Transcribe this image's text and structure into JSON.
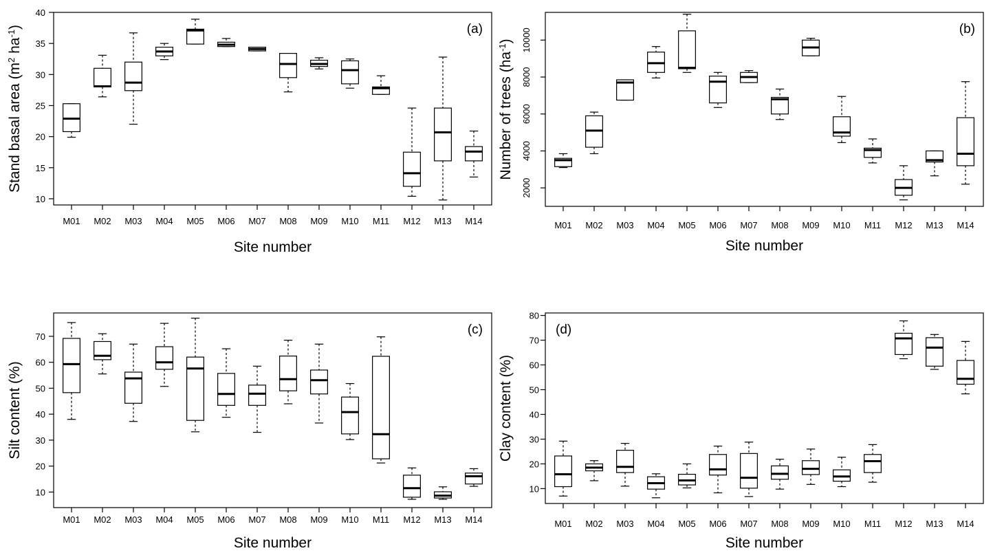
{
  "chart_data": [
    {
      "type": "box",
      "panel_label": "(a)",
      "xlabel": "Site number",
      "ylabel_parts": [
        "Stand basal area (m",
        "2",
        " ha",
        "-1",
        ")"
      ],
      "ylim": [
        9,
        40
      ],
      "yticks": [
        10,
        15,
        20,
        25,
        30,
        35,
        40
      ],
      "categories": [
        "M01",
        "M02",
        "M03",
        "M04",
        "M05",
        "M06",
        "M07",
        "M08",
        "M09",
        "M10",
        "M11",
        "M12",
        "M13",
        "M14"
      ],
      "boxes": [
        {
          "min": 19.9,
          "q1": 20.8,
          "median": 22.9,
          "q3": 25.3,
          "max": 25.3
        },
        {
          "min": 26.4,
          "q1": 28.0,
          "median": 28.1,
          "q3": 31.0,
          "max": 33.1
        },
        {
          "min": 22.0,
          "q1": 27.4,
          "median": 28.7,
          "q3": 32.0,
          "max": 36.7
        },
        {
          "min": 32.4,
          "q1": 33.0,
          "median": 33.7,
          "q3": 34.4,
          "max": 35.0
        },
        {
          "min": 34.9,
          "q1": 34.9,
          "median": 37.1,
          "q3": 37.3,
          "max": 38.9
        },
        {
          "min": 34.5,
          "q1": 34.5,
          "median": 34.8,
          "q3": 35.2,
          "max": 35.8
        },
        {
          "min": 33.8,
          "q1": 33.8,
          "median": 34.1,
          "q3": 34.4,
          "max": 34.4
        },
        {
          "min": 27.2,
          "q1": 29.5,
          "median": 31.7,
          "q3": 33.4,
          "max": 33.4
        },
        {
          "min": 30.9,
          "q1": 31.3,
          "median": 31.7,
          "q3": 32.3,
          "max": 32.7
        },
        {
          "min": 27.8,
          "q1": 28.5,
          "median": 30.7,
          "q3": 32.2,
          "max": 32.5
        },
        {
          "min": 26.8,
          "q1": 26.8,
          "median": 27.8,
          "q3": 28.0,
          "max": 29.8
        },
        {
          "min": 10.4,
          "q1": 12.0,
          "median": 14.1,
          "q3": 17.5,
          "max": 24.6
        },
        {
          "min": 9.8,
          "q1": 16.1,
          "median": 20.7,
          "q3": 24.6,
          "max": 32.8
        },
        {
          "min": 13.5,
          "q1": 16.1,
          "median": 17.6,
          "q3": 18.4,
          "max": 20.9
        }
      ]
    },
    {
      "type": "box",
      "panel_label": "(b)",
      "xlabel": "Site number",
      "ylabel_parts": [
        "Number of trees (ha",
        "-1",
        ")"
      ],
      "ylim": [
        1000,
        11500
      ],
      "yticks": [
        2000,
        4000,
        6000,
        8000,
        10000
      ],
      "categories": [
        "M01",
        "M02",
        "M03",
        "M04",
        "M05",
        "M06",
        "M07",
        "M08",
        "M09",
        "M10",
        "M11",
        "M12",
        "M13",
        "M14"
      ],
      "boxes": [
        {
          "min": 3100,
          "q1": 3150,
          "median": 3500,
          "q3": 3600,
          "max": 3850
        },
        {
          "min": 3850,
          "q1": 4200,
          "median": 5100,
          "q3": 5900,
          "max": 6100
        },
        {
          "min": 6750,
          "q1": 6750,
          "median": 7700,
          "q3": 7850,
          "max": 7850
        },
        {
          "min": 7950,
          "q1": 8250,
          "median": 8750,
          "q3": 9350,
          "max": 9650
        },
        {
          "min": 8250,
          "q1": 8450,
          "median": 8500,
          "q3": 10500,
          "max": 11400
        },
        {
          "min": 6350,
          "q1": 6600,
          "median": 7750,
          "q3": 8050,
          "max": 8250
        },
        {
          "min": 7700,
          "q1": 7700,
          "median": 8000,
          "q3": 8250,
          "max": 8350
        },
        {
          "min": 5700,
          "q1": 6000,
          "median": 6800,
          "q3": 6900,
          "max": 7350
        },
        {
          "min": 9150,
          "q1": 9150,
          "median": 9600,
          "q3": 10000,
          "max": 10100
        },
        {
          "min": 4450,
          "q1": 4800,
          "median": 5000,
          "q3": 5850,
          "max": 6950
        },
        {
          "min": 3350,
          "q1": 3650,
          "median": 4050,
          "q3": 4150,
          "max": 4650
        },
        {
          "min": 1350,
          "q1": 1600,
          "median": 2000,
          "q3": 2450,
          "max": 3200
        },
        {
          "min": 2650,
          "q1": 3400,
          "median": 3500,
          "q3": 4000,
          "max": 4000
        },
        {
          "min": 2200,
          "q1": 3200,
          "median": 3850,
          "q3": 5800,
          "max": 7750
        }
      ]
    },
    {
      "type": "box",
      "panel_label": "(c)",
      "xlabel": "Site number",
      "ylabel_parts": [
        "Silt content (%)"
      ],
      "ylim": [
        4,
        79
      ],
      "yticks": [
        10,
        20,
        30,
        40,
        50,
        60,
        70
      ],
      "categories": [
        "M01",
        "M02",
        "M03",
        "M04",
        "M05",
        "M06",
        "M07",
        "M08",
        "M09",
        "M10",
        "M11",
        "M12",
        "M13",
        "M14"
      ],
      "boxes": [
        {
          "min": 38,
          "q1": 48.3,
          "median": 59.3,
          "q3": 69.2,
          "max": 75.3
        },
        {
          "min": 55.5,
          "q1": 61,
          "median": 62.5,
          "q3": 68,
          "max": 71
        },
        {
          "min": 37.2,
          "q1": 44.2,
          "median": 53.8,
          "q3": 56.2,
          "max": 67
        },
        {
          "min": 50.7,
          "q1": 57.3,
          "median": 60,
          "q3": 66,
          "max": 75
        },
        {
          "min": 33.2,
          "q1": 37.6,
          "median": 57.6,
          "q3": 62,
          "max": 77
        },
        {
          "min": 38.8,
          "q1": 43.4,
          "median": 47.8,
          "q3": 55.7,
          "max": 65.2
        },
        {
          "min": 33,
          "q1": 43.4,
          "median": 47.9,
          "q3": 51.2,
          "max": 58.5
        },
        {
          "min": 44,
          "q1": 49,
          "median": 53.5,
          "q3": 62.4,
          "max": 68.5
        },
        {
          "min": 36.6,
          "q1": 47.8,
          "median": 53.1,
          "q3": 57,
          "max": 67
        },
        {
          "min": 30.2,
          "q1": 32.4,
          "median": 40.8,
          "q3": 46.6,
          "max": 51.8
        },
        {
          "min": 21.2,
          "q1": 22.8,
          "median": 32.3,
          "q3": 62.3,
          "max": 69.8
        },
        {
          "min": 7.2,
          "q1": 8,
          "median": 11.5,
          "q3": 16.5,
          "max": 19.3
        },
        {
          "min": 7.2,
          "q1": 7.7,
          "median": 8.6,
          "q3": 10.1,
          "max": 12
        },
        {
          "min": 12.2,
          "q1": 13.1,
          "median": 16.1,
          "q3": 17.3,
          "max": 19
        }
      ]
    },
    {
      "type": "box",
      "panel_label": "(d)",
      "xlabel": "Site number",
      "ylabel_parts": [
        "Clay content (%)"
      ],
      "ylim": [
        4,
        81
      ],
      "yticks": [
        10,
        20,
        30,
        40,
        50,
        60,
        70,
        80
      ],
      "categories": [
        "M01",
        "M02",
        "M03",
        "M04",
        "M05",
        "M06",
        "M07",
        "M08",
        "M09",
        "M10",
        "M11",
        "M12",
        "M13",
        "M14"
      ],
      "boxes": [
        {
          "min": 7,
          "q1": 10.8,
          "median": 15.8,
          "q3": 23.2,
          "max": 29.2
        },
        {
          "min": 13.2,
          "q1": 17.2,
          "median": 18.5,
          "q3": 20,
          "max": 21.3
        },
        {
          "min": 11,
          "q1": 16.5,
          "median": 18.8,
          "q3": 25.5,
          "max": 28.3
        },
        {
          "min": 6.3,
          "q1": 9.8,
          "median": 12.2,
          "q3": 14.8,
          "max": 16
        },
        {
          "min": 10.3,
          "q1": 11.5,
          "median": 13.3,
          "q3": 15.8,
          "max": 20
        },
        {
          "min": 8.3,
          "q1": 15.5,
          "median": 17.8,
          "q3": 23.8,
          "max": 27.2
        },
        {
          "min": 6.8,
          "q1": 10.2,
          "median": 14.4,
          "q3": 24.2,
          "max": 28.8
        },
        {
          "min": 9.8,
          "q1": 13.8,
          "median": 16,
          "q3": 19.2,
          "max": 21.9
        },
        {
          "min": 11.7,
          "q1": 15.7,
          "median": 18,
          "q3": 21.3,
          "max": 26
        },
        {
          "min": 10.8,
          "q1": 13,
          "median": 14.9,
          "q3": 17.6,
          "max": 22.7
        },
        {
          "min": 12.6,
          "q1": 16.5,
          "median": 21.1,
          "q3": 23.8,
          "max": 27.8
        },
        {
          "min": 62.5,
          "q1": 64.2,
          "median": 70.7,
          "q3": 72.8,
          "max": 77.8
        },
        {
          "min": 58.2,
          "q1": 59.5,
          "median": 67,
          "q3": 71,
          "max": 72.3
        },
        {
          "min": 48.3,
          "q1": 52.2,
          "median": 54.4,
          "q3": 61.8,
          "max": 69.5
        }
      ]
    }
  ]
}
